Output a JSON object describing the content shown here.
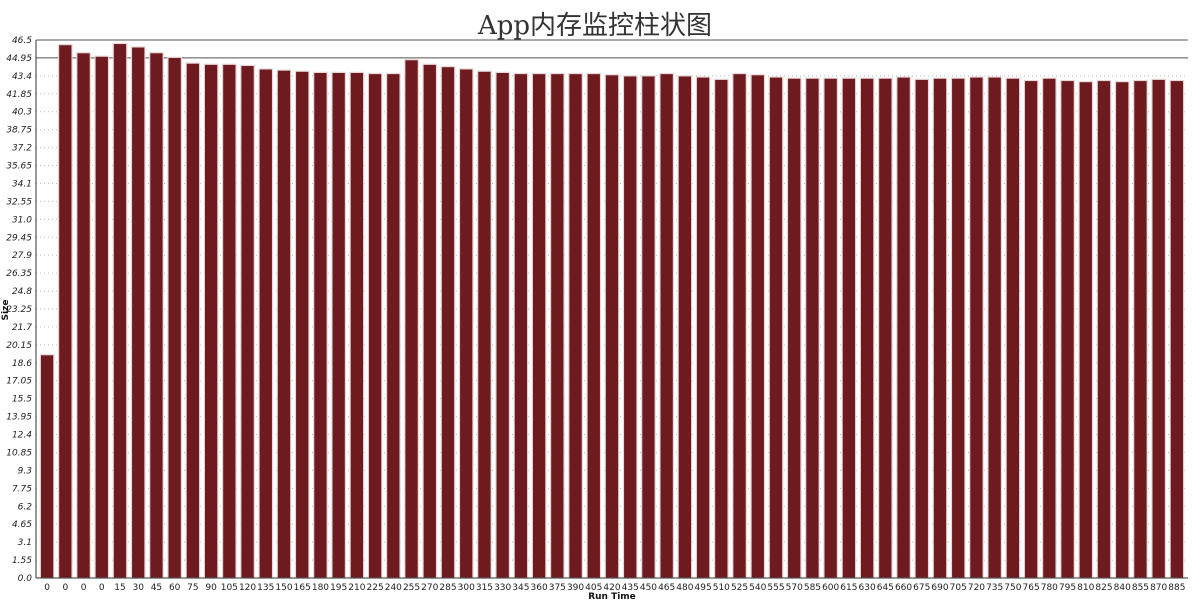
{
  "chart_data": {
    "type": "bar",
    "title": "App内存监控柱状图",
    "xlabel": "Run Time",
    "ylabel": "Size",
    "ylim": [
      0,
      46.5
    ],
    "yticks": [
      "0.0",
      "1.55",
      "3.1",
      "4.65",
      "6.2",
      "7.75",
      "9.3",
      "10.85",
      "12.4",
      "13.95",
      "15.5",
      "17.05",
      "18.6",
      "20.15",
      "21.7",
      "23.25",
      "24.8",
      "26.35",
      "27.9",
      "29.45",
      "31.0",
      "32.55",
      "34.1",
      "35.65",
      "37.2",
      "38.75",
      "40.3",
      "41.85",
      "43.4",
      "44.95",
      "46.5"
    ],
    "grid": true,
    "legend": "none",
    "bar_color": "#6e1a1e",
    "categories": [
      "0",
      "0",
      "0",
      "0",
      "15",
      "30",
      "45",
      "60",
      "75",
      "90",
      "105",
      "120",
      "135",
      "150",
      "165",
      "180",
      "195",
      "210",
      "225",
      "240",
      "255",
      "270",
      "285",
      "300",
      "315",
      "330",
      "345",
      "360",
      "375",
      "390",
      "405",
      "420",
      "435",
      "450",
      "465",
      "480",
      "495",
      "510",
      "525",
      "540",
      "555",
      "570",
      "585",
      "600",
      "615",
      "630",
      "645",
      "660",
      "675",
      "690",
      "705",
      "720",
      "735",
      "750",
      "765",
      "780",
      "795",
      "810",
      "825",
      "840",
      "855",
      "870",
      "885"
    ],
    "values": [
      19.3,
      46.1,
      45.4,
      45.1,
      46.2,
      45.9,
      45.4,
      45.0,
      44.5,
      44.4,
      44.4,
      44.3,
      44.0,
      43.9,
      43.8,
      43.7,
      43.7,
      43.7,
      43.6,
      43.6,
      44.8,
      44.4,
      44.2,
      44.0,
      43.8,
      43.7,
      43.6,
      43.6,
      43.6,
      43.6,
      43.6,
      43.5,
      43.4,
      43.4,
      43.6,
      43.4,
      43.3,
      43.1,
      43.6,
      43.5,
      43.3,
      43.2,
      43.2,
      43.2,
      43.2,
      43.2,
      43.2,
      43.3,
      43.1,
      43.2,
      43.2,
      43.3,
      43.3,
      43.2,
      43.0,
      43.2,
      43.0,
      42.9,
      43.0,
      42.9,
      43.0,
      43.1,
      43.0
    ]
  }
}
